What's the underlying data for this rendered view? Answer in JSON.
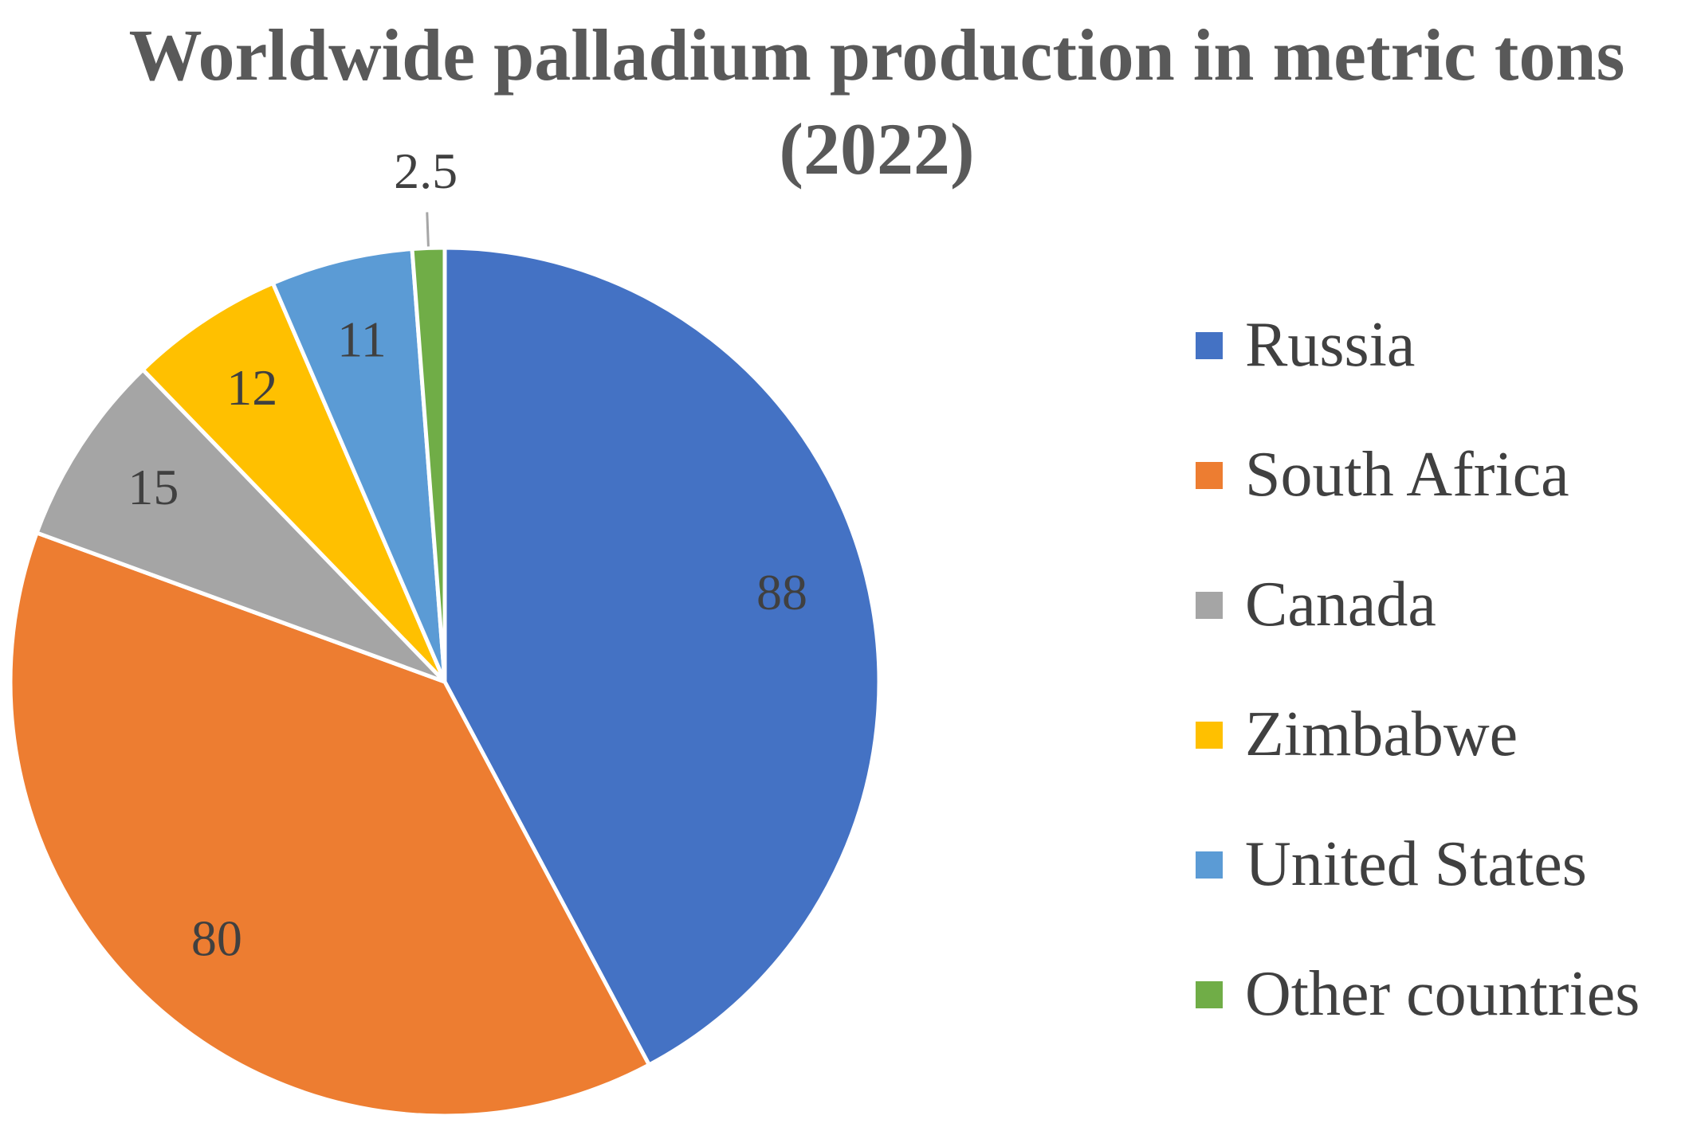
{
  "chart_data": {
    "type": "pie",
    "title_lines": [
      "Worldwide palladium production in metric tons",
      "(2022)"
    ],
    "categories": [
      "Russia",
      "South Africa",
      "Canada",
      "Zimbabwe",
      "United States",
      "Other countries"
    ],
    "values": [
      88,
      80,
      15,
      12,
      11,
      2.5
    ],
    "value_labels": [
      "88",
      "80",
      "15",
      "12",
      "11",
      "2.5"
    ],
    "colors": [
      "#4472C4",
      "#ED7D31",
      "#A5A5A5",
      "#FFC000",
      "#5B9BD5",
      "#70AD47"
    ],
    "start_angle_deg": 0,
    "direction": "clockwise",
    "legend_position": "right"
  }
}
